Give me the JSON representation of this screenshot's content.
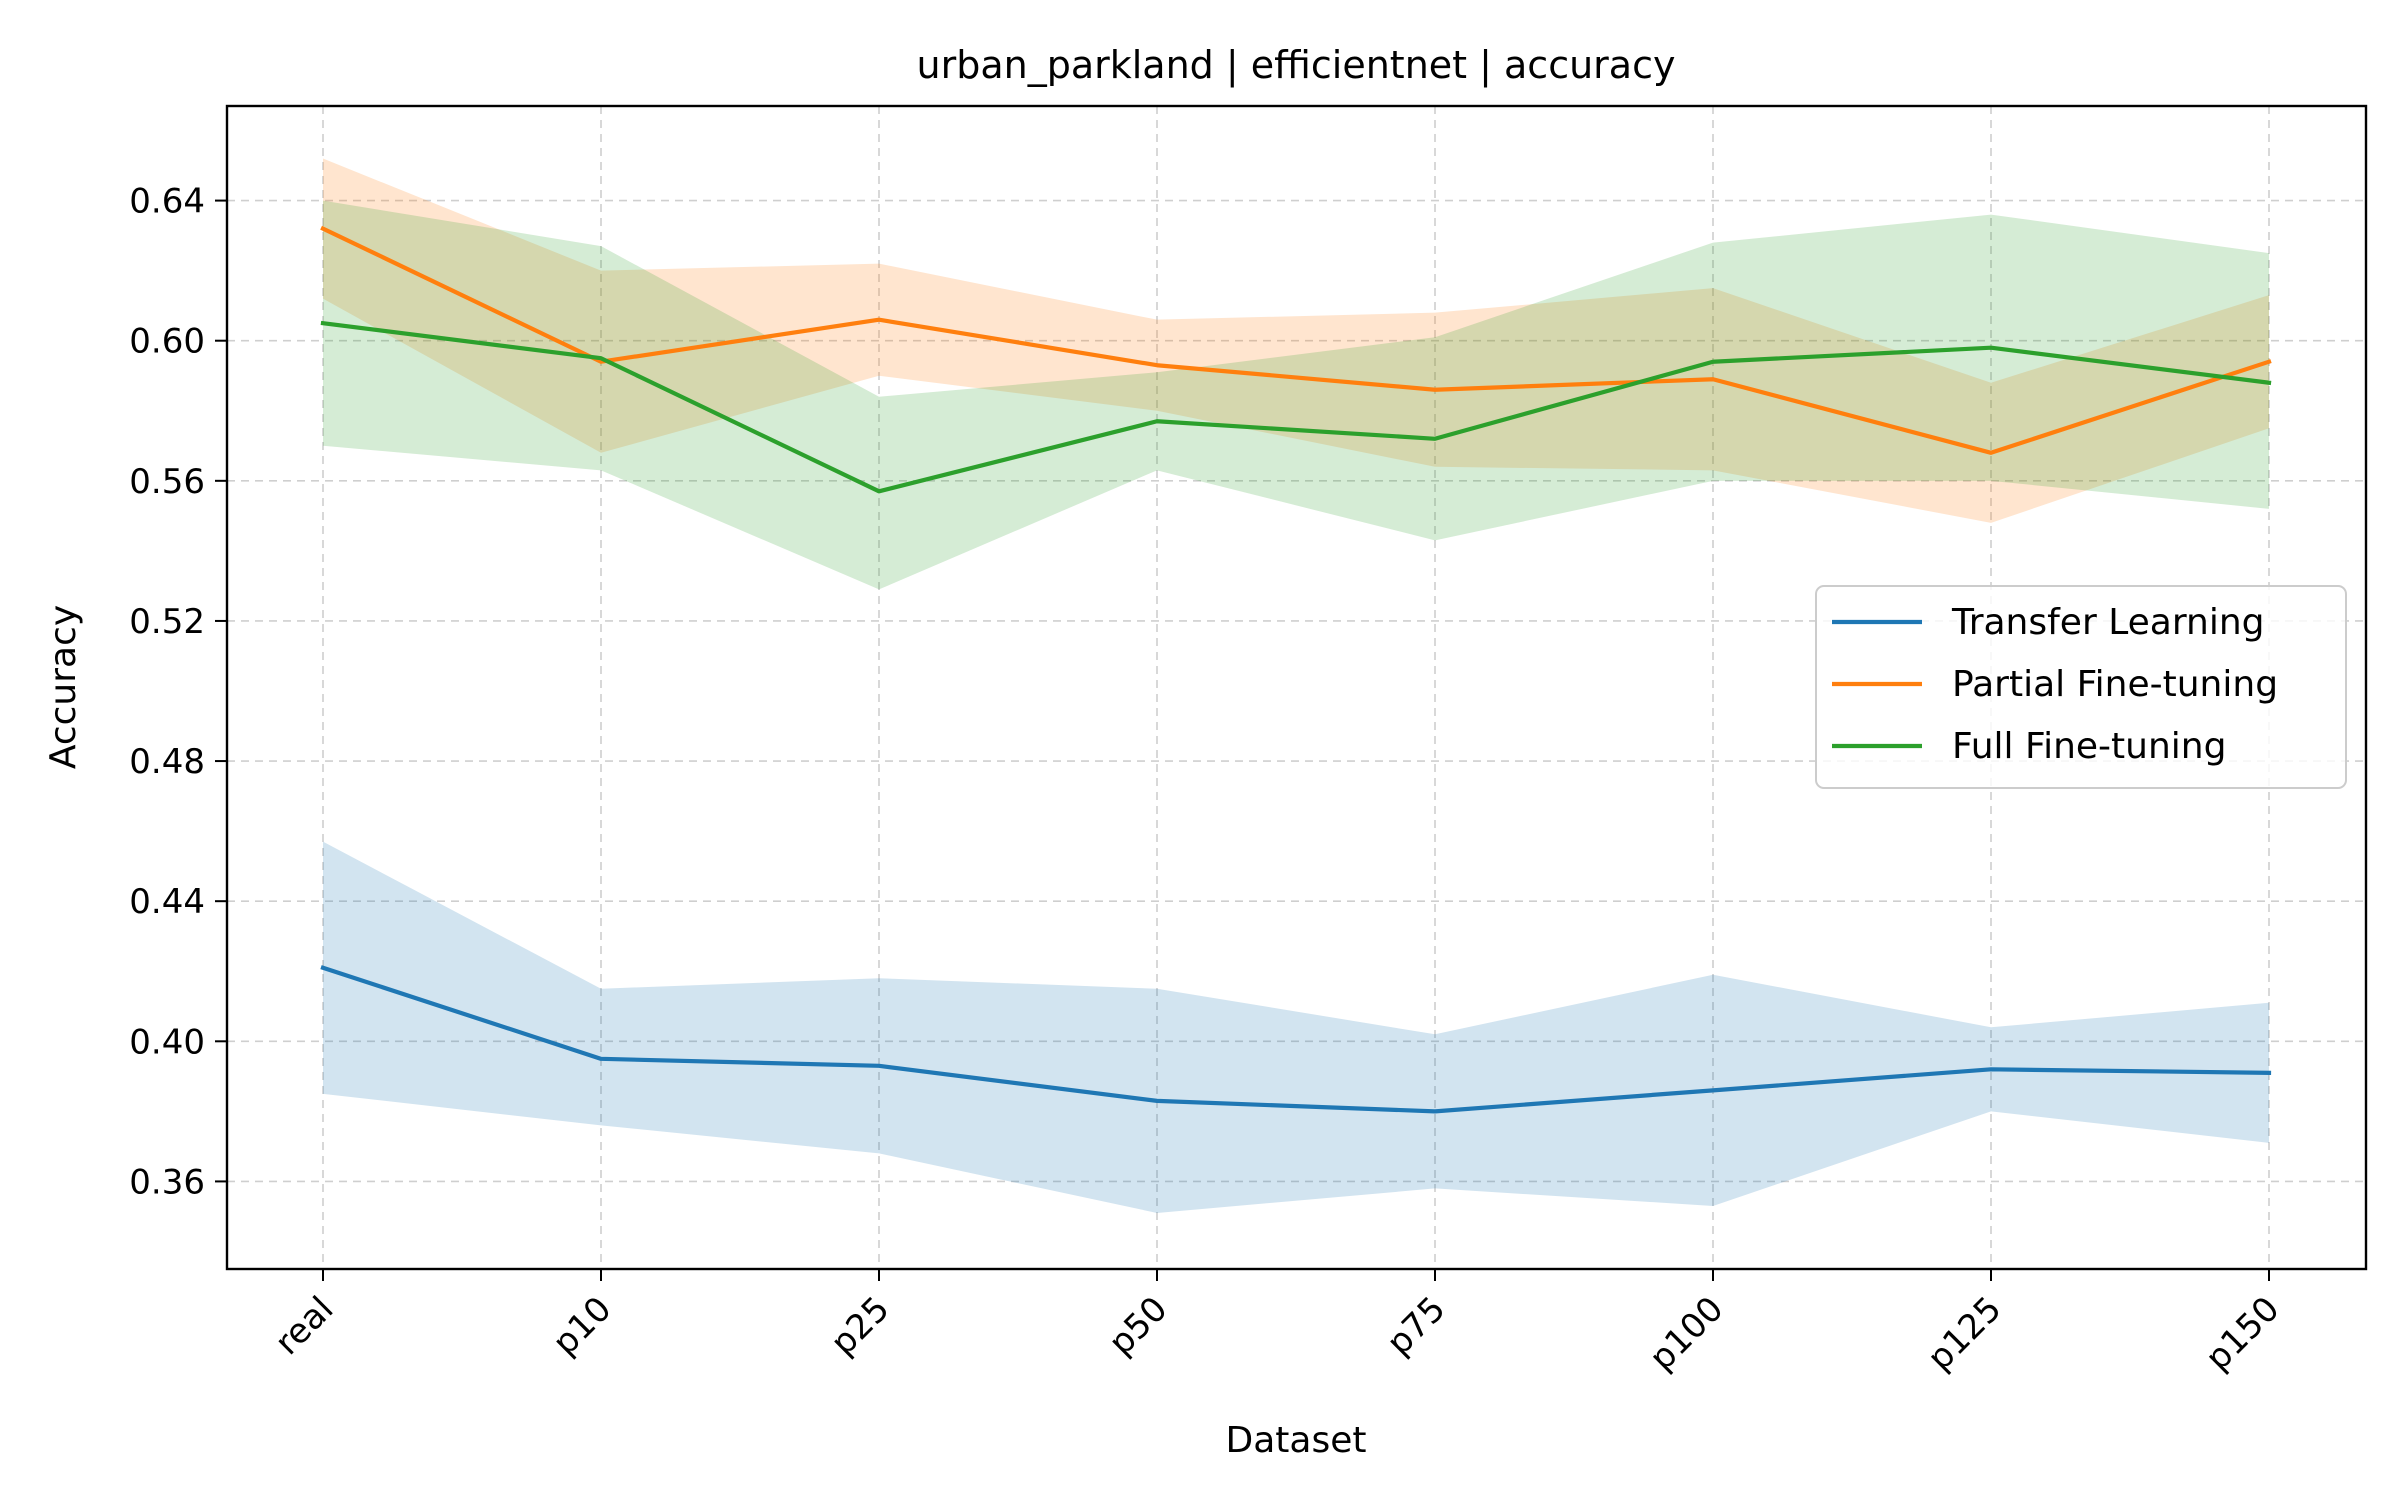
{
  "chart_data": {
    "type": "line",
    "title": "urban_parkland | efficientnet | accuracy",
    "xlabel": "Dataset",
    "ylabel": "Accuracy",
    "categories": [
      "real",
      "p10",
      "p25",
      "p50",
      "p75",
      "p100",
      "p125",
      "p150"
    ],
    "ylim": [
      0.335,
      0.667
    ],
    "yticks": [
      0.36,
      0.4,
      0.44,
      0.48,
      0.52,
      0.56,
      0.6,
      0.64
    ],
    "ytick_labels": [
      "0.36",
      "0.40",
      "0.44",
      "0.48",
      "0.52",
      "0.56",
      "0.60",
      "0.64"
    ],
    "grid": true,
    "legend_position": "center-right",
    "series": [
      {
        "name": "Transfer Learning",
        "color": "#1f77b4",
        "values": [
          0.421,
          0.395,
          0.393,
          0.383,
          0.38,
          0.386,
          0.392,
          0.391
        ],
        "lower": [
          0.385,
          0.376,
          0.368,
          0.351,
          0.358,
          0.353,
          0.38,
          0.371
        ],
        "upper": [
          0.457,
          0.415,
          0.418,
          0.415,
          0.402,
          0.419,
          0.404,
          0.411
        ]
      },
      {
        "name": "Partial Fine-tuning",
        "color": "#ff7f0e",
        "values": [
          0.632,
          0.594,
          0.606,
          0.593,
          0.586,
          0.589,
          0.568,
          0.594
        ],
        "lower": [
          0.612,
          0.568,
          0.59,
          0.58,
          0.564,
          0.563,
          0.548,
          0.575
        ],
        "upper": [
          0.652,
          0.62,
          0.622,
          0.606,
          0.608,
          0.615,
          0.588,
          0.613
        ]
      },
      {
        "name": "Full Fine-tuning",
        "color": "#2ca02c",
        "values": [
          0.605,
          0.595,
          0.557,
          0.577,
          0.572,
          0.594,
          0.598,
          0.588
        ],
        "lower": [
          0.57,
          0.563,
          0.529,
          0.563,
          0.543,
          0.56,
          0.56,
          0.552
        ],
        "upper": [
          0.64,
          0.627,
          0.584,
          0.591,
          0.601,
          0.628,
          0.636,
          0.625
        ]
      }
    ]
  }
}
